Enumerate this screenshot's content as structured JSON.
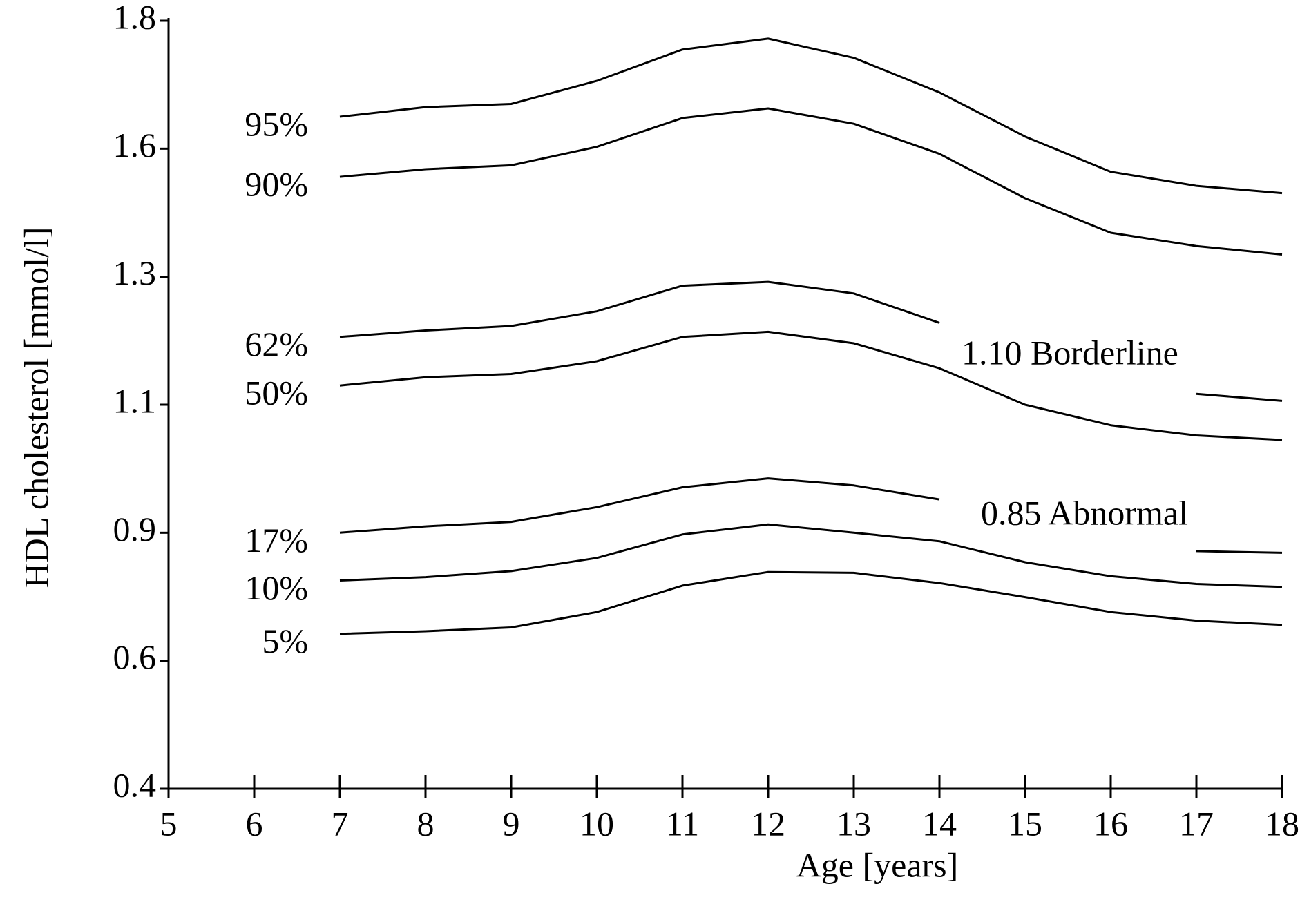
{
  "chart_data": {
    "type": "line",
    "x_label": "Age [years]",
    "y_label": "HDL cholesterol [mmol/l]",
    "x": [
      7,
      8,
      9,
      10,
      11,
      12,
      13,
      14,
      15,
      16,
      17,
      18
    ],
    "series": [
      {
        "name": "95%",
        "color": "#000000",
        "values": [
          1.65,
          1.665,
          1.67,
          1.706,
          1.755,
          1.772,
          1.742,
          1.688,
          1.619,
          1.546,
          1.513,
          1.496
        ]
      },
      {
        "name": "90%",
        "color": "#000000",
        "values": [
          1.534,
          1.552,
          1.561,
          1.603,
          1.648,
          1.663,
          1.639,
          1.588,
          1.484,
          1.403,
          1.372,
          1.352
        ]
      },
      {
        "name": "62%",
        "color": "#000000",
        "values": [
          1.206,
          1.216,
          1.223,
          1.246,
          1.286,
          1.292,
          1.274,
          1.228,
          null,
          null,
          1.117,
          1.106
        ]
      },
      {
        "name": "50%",
        "color": "#000000",
        "values": [
          1.13,
          1.143,
          1.148,
          1.168,
          1.206,
          1.214,
          1.196,
          1.157,
          1.1,
          1.068,
          1.052,
          1.045
        ]
      },
      {
        "name": "17%",
        "color": "#000000",
        "values": [
          0.9,
          0.91,
          0.917,
          0.94,
          0.971,
          0.985,
          0.974,
          0.952,
          null,
          null,
          0.857,
          0.853
        ]
      },
      {
        "name": "10%",
        "color": "#000000",
        "values": [
          0.788,
          0.796,
          0.81,
          0.841,
          0.896,
          0.913,
          0.9,
          0.88,
          0.831,
          0.798,
          0.78,
          0.773
        ]
      },
      {
        "name": "5%",
        "color": "#000000",
        "values": [
          0.663,
          0.669,
          0.678,
          0.714,
          0.776,
          0.808,
          0.806,
          0.782,
          0.749,
          0.714,
          0.694,
          0.684
        ]
      }
    ],
    "annotations": [
      "1.10 Borderline",
      "0.85 Abnormal"
    ],
    "xlim": [
      5,
      18
    ],
    "xticks": [
      5,
      6,
      7,
      8,
      9,
      10,
      11,
      12,
      13,
      14,
      15,
      16,
      17,
      18
    ],
    "ylim": [
      0.4,
      1.8
    ],
    "yticks": [
      0.4,
      0.6,
      0.9,
      1.1,
      1.3,
      1.6,
      1.8
    ]
  }
}
